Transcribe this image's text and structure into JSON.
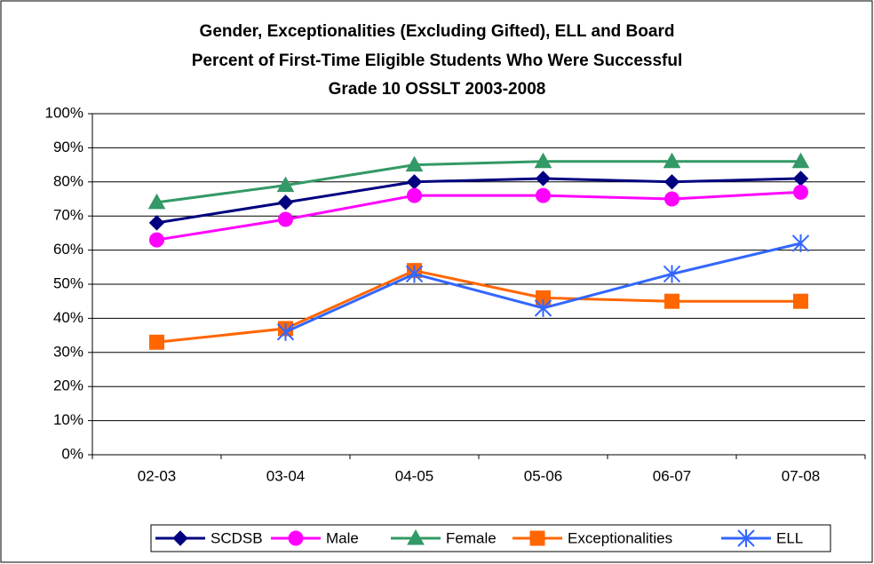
{
  "chart_data": {
    "type": "line",
    "title": [
      "Gender, Exceptionalities (Excluding Gifted), ELL and Board",
      "Percent of First-Time Eligible Students Who Were Successful",
      "Grade 10 OSSLT 2003-2008"
    ],
    "categories": [
      "02-03",
      "03-04",
      "04-05",
      "05-06",
      "06-07",
      "07-08"
    ],
    "series": [
      {
        "name": "SCDSB",
        "color": "#000080",
        "marker": "diamond",
        "values": [
          68,
          74,
          80,
          81,
          80,
          81
        ]
      },
      {
        "name": "Male",
        "color": "#ff00ff",
        "marker": "circle",
        "values": [
          63,
          69,
          76,
          76,
          75,
          77
        ]
      },
      {
        "name": "Female",
        "color": "#339966",
        "marker": "triangle",
        "values": [
          74,
          79,
          85,
          86,
          86,
          86
        ]
      },
      {
        "name": "Exceptionalities",
        "color": "#ff6600",
        "marker": "square",
        "values": [
          33,
          37,
          54,
          46,
          45,
          45
        ]
      },
      {
        "name": "ELL",
        "color": "#3366ff",
        "marker": "asterisk",
        "values": [
          null,
          36,
          53,
          43,
          53,
          62
        ]
      }
    ],
    "ylim": [
      0,
      100
    ],
    "yticks": [
      {
        "value": 0,
        "label": "0%"
      },
      {
        "value": 10,
        "label": "10%"
      },
      {
        "value": 20,
        "label": "20%"
      },
      {
        "value": 30,
        "label": "30%"
      },
      {
        "value": 40,
        "label": "40%"
      },
      {
        "value": 50,
        "label": "50%"
      },
      {
        "value": 60,
        "label": "60%"
      },
      {
        "value": 70,
        "label": "70%"
      },
      {
        "value": 80,
        "label": "80%"
      },
      {
        "value": 90,
        "label": "90%"
      },
      {
        "value": 100,
        "label": "100%"
      }
    ],
    "grid": true,
    "legend": "bottom"
  }
}
